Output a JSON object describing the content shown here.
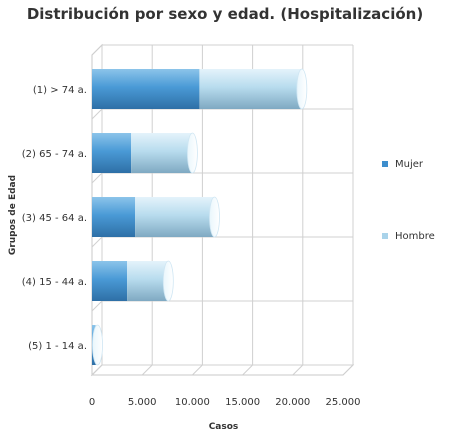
{
  "chart_data": {
    "type": "bar",
    "orientation": "horizontal",
    "stacked": true,
    "style_3d_cylinder": true,
    "title": "Distribución por sexo y edad. (Hospitalización)",
    "xlabel": "Casos",
    "ylabel": "Grupos de Edad",
    "categories": [
      "(1) > 74 a.",
      "(2) 65 - 74 a.",
      "(3) 45 - 64 a.",
      "(4) 15 - 44 a.",
      "(5) 1 - 14 a."
    ],
    "series": [
      {
        "name": "Mujer",
        "values": [
          10700,
          3900,
          4300,
          3500,
          350
        ],
        "color": "#3d8ecd"
      },
      {
        "name": "Hombre",
        "values": [
          10200,
          6100,
          7900,
          4100,
          200
        ],
        "color": "#a9d3ea"
      }
    ],
    "xlim": [
      0,
      25000
    ],
    "xticks": [
      0,
      5000,
      10000,
      15000,
      20000,
      25000
    ],
    "xtick_labels": [
      "0",
      "5.000",
      "10.000",
      "15.000",
      "20.000",
      "25.000"
    ],
    "grid": true,
    "legend_position": "right"
  }
}
